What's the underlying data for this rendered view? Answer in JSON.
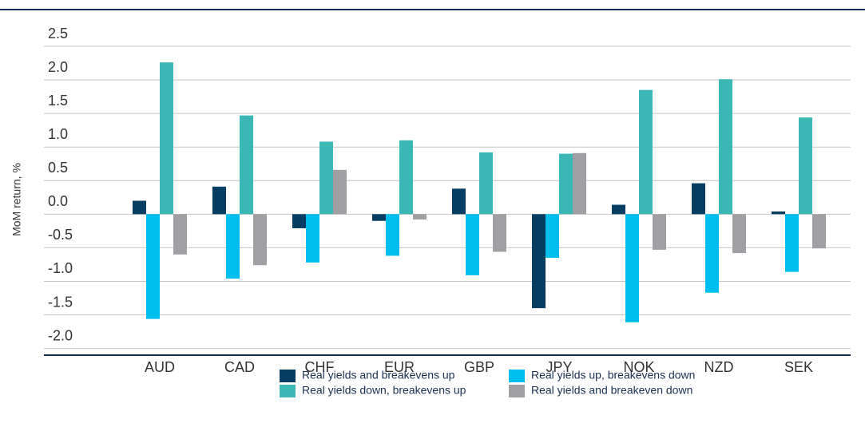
{
  "chart_data": {
    "type": "bar",
    "y_label": "MoM return, %",
    "categories": [
      "AUD",
      "CAD",
      "CHF",
      "EUR",
      "GBP",
      "JPY",
      "NOK",
      "NZD",
      "SEK"
    ],
    "series": [
      {
        "name": "Real yields and breakevens up",
        "color": "#063e63",
        "values": [
          0.2,
          0.41,
          -0.21,
          -0.1,
          0.38,
          -1.4,
          0.14,
          0.46,
          0.04
        ]
      },
      {
        "name": "Real yields up, breakevens down",
        "color": "#00bfef",
        "values": [
          -1.56,
          -0.96,
          -0.72,
          -0.62,
          -0.91,
          -0.65,
          -1.61,
          -1.17,
          -0.86
        ]
      },
      {
        "name": "Real yields down, breakevens up",
        "color": "#3bb8b6",
        "values": [
          2.26,
          1.47,
          1.08,
          1.1,
          0.92,
          0.9,
          1.85,
          2.01,
          1.44
        ]
      },
      {
        "name": "Real yields and breakeven down",
        "color": "#a0a0a4",
        "values": [
          -0.6,
          -0.76,
          0.66,
          -0.08,
          -0.56,
          0.91,
          -0.53,
          -0.58,
          -0.51
        ]
      }
    ],
    "ylim": [
      -2.1,
      2.5
    ],
    "yticks": [
      {
        "value": 2.5,
        "label": "2.5"
      },
      {
        "value": 2,
        "label": "2.0"
      },
      {
        "value": 1.5,
        "label": "1.5"
      },
      {
        "value": 1,
        "label": "1.0"
      },
      {
        "value": 0.5,
        "label": "0.5"
      },
      {
        "value": 0,
        "label": "0.0"
      },
      {
        "value": -0.5,
        "label": "-0.5"
      },
      {
        "value": -1,
        "label": "-1.0"
      },
      {
        "value": -1.5,
        "label": "-1.5"
      },
      {
        "value": -2,
        "label": "-2.0"
      }
    ],
    "grid": true
  }
}
